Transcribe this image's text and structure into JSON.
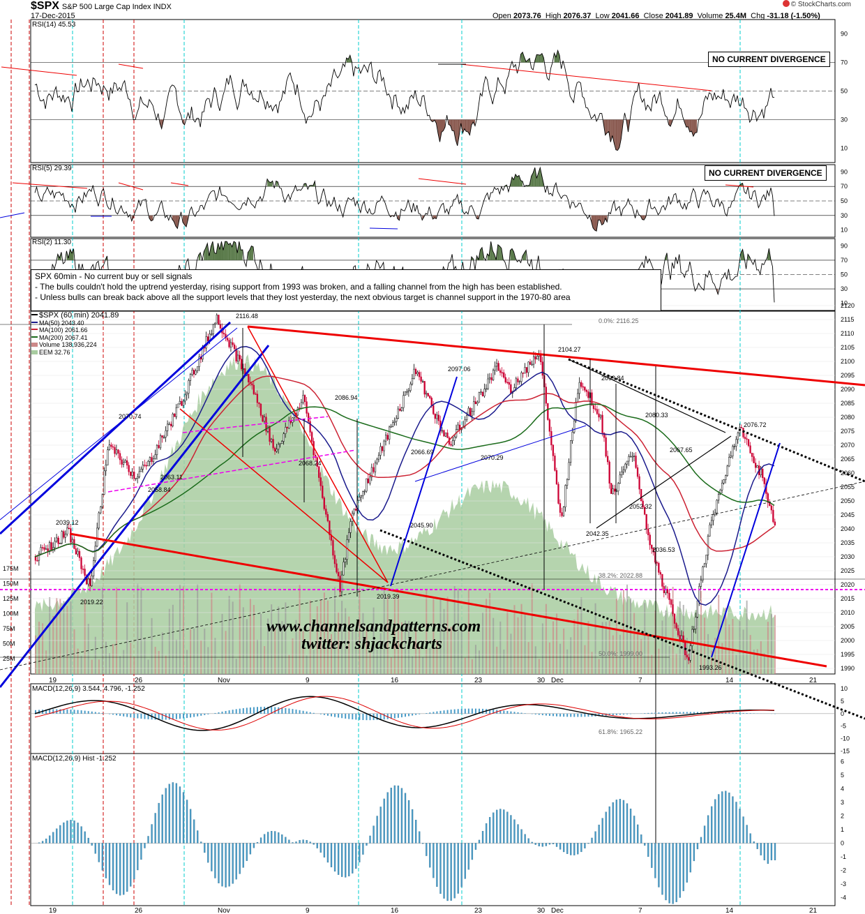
{
  "header": {
    "symbol": "$SPX",
    "name": "S&P 500 Large Cap Index INDX",
    "date": "17-Dec-2015",
    "open_label": "Open",
    "open": "2073.76",
    "high_label": "High",
    "high": "2076.37",
    "low_label": "Low",
    "low": "2041.66",
    "close_label": "Close",
    "close": "2041.89",
    "volume_label": "Volume",
    "volume": "25.4M",
    "chg_label": "Chg",
    "chg": "-31.18 (-1.50%)",
    "credit": "© StockCharts.com"
  },
  "annotations": {
    "rsi14_box": "NO CURRENT DIVERGENCE",
    "rsi5_box": "NO CURRENT DIVERGENCE",
    "note_lines": [
      "SPX 60min - No current buy or sell signals",
      "- The bulls couldn't hold the uptrend yesterday, rising support from 1993 was broken, and a falling channel from the high has been established.",
      "- Unless bulls can break back above all the support levels that they lost yesterday, the next obvious target is channel support in the 1970-80 area"
    ],
    "watermark_line1": "www.channelsandpatterns.com",
    "watermark_line2": "twitter: shjackcharts",
    "fib_0": "0.0%: 2116.25",
    "fib_382": "38.2%: 2022.88",
    "fib_50": "50.0%: 1999.00",
    "fib_618": "61.8%: 1965.22"
  },
  "legend": {
    "price": "$SPX (60 min) 2041.89",
    "ma50": "MA(50) 2043.40",
    "ma100": "MA(100) 2061.66",
    "ma200": "MA(200) 2067.41",
    "volume": "Volume 138,936,224",
    "eem": "EEM 32.76"
  },
  "colors": {
    "price_up": "#000000",
    "price_down": "#cc0033",
    "ma50": "#1a1a8c",
    "ma100": "#cc2233",
    "ma200": "#1a6b1a",
    "eem_fill": "#a8cca0",
    "trend_red": "#ee0000",
    "trend_blue": "#0000dd",
    "support_magenta": "#ee00ee",
    "macd_hist": "#4a9cc8",
    "rsi_green": "#5a7a4a",
    "rsi_brown": "#8a5a50",
    "cyan_marker": "#00cccc",
    "red_marker": "#cc0000"
  },
  "chart_data": [
    {
      "type": "line",
      "panel": "RSI(14)",
      "title": "RSI(14) 45.53",
      "ylim": [
        0,
        100
      ],
      "y_ticks": [
        10,
        30,
        50,
        70,
        90
      ],
      "current_value": 45.53
    },
    {
      "type": "line",
      "panel": "RSI(5)",
      "title": "RSI(5) 29.39",
      "ylim": [
        0,
        100
      ],
      "y_ticks": [
        10,
        30,
        50,
        70,
        90
      ],
      "current_value": 29.39
    },
    {
      "type": "line",
      "panel": "RSI(2)",
      "title": "RSI(2) 11.30",
      "ylim": [
        0,
        100
      ],
      "y_ticks": [
        10,
        30,
        50,
        70,
        90
      ],
      "current_value": 11.3
    },
    {
      "type": "line",
      "panel": "price",
      "title": "$SPX (60 min) 2041.89",
      "ylim": [
        1990,
        2120
      ],
      "y_ticks": [
        1990,
        1995,
        2000,
        2005,
        2010,
        2015,
        2020,
        2025,
        2030,
        2035,
        2040,
        2045,
        2050,
        2055,
        2060,
        2065,
        2070,
        2075,
        2080,
        2085,
        2090,
        2095,
        2100,
        2105,
        2110,
        2115,
        2120
      ],
      "x_tick_labels": [
        "19",
        "26",
        "Nov",
        "9",
        "16",
        "23",
        "30",
        "Dec",
        "7",
        "14",
        "21"
      ],
      "volume_tick_labels": [
        "25M",
        "50M",
        "75M",
        "100M",
        "125M",
        "150M",
        "175M"
      ],
      "price_labels": [
        {
          "x": "Oct 21",
          "y": 2039.12,
          "text": "2039.12"
        },
        {
          "x": "Oct 23",
          "y": 2019.22,
          "text": "2019.22"
        },
        {
          "x": "Oct 26",
          "y": 2070.74,
          "text": "2070.74"
        },
        {
          "x": "Oct 28",
          "y": 2058.84,
          "text": "2058.84"
        },
        {
          "x": "Oct 29",
          "y": 2063.11,
          "text": "2063.11"
        },
        {
          "x": "Nov 3",
          "y": 2116.48,
          "text": "2116.48"
        },
        {
          "x": "Nov 9",
          "y": 2068.24,
          "text": "2068.24"
        },
        {
          "x": "Nov 11",
          "y": 2086.94,
          "text": "2086.94"
        },
        {
          "x": "Nov 16",
          "y": 2019.39,
          "text": "2019.39"
        },
        {
          "x": "Nov 17",
          "y": 2045.9,
          "text": "2045.90"
        },
        {
          "x": "Nov 18",
          "y": 2066.69,
          "text": "2066.69"
        },
        {
          "x": "Nov 20",
          "y": 2097.06,
          "text": "2097.06"
        },
        {
          "x": "Nov 24",
          "y": 2070.29,
          "text": "2070.29"
        },
        {
          "x": "Dec 1",
          "y": 2104.27,
          "text": "2104.27"
        },
        {
          "x": "Dec 4",
          "y": 2042.35,
          "text": "2042.35"
        },
        {
          "x": "Dec 4",
          "y": 2093.84,
          "text": "2093.84"
        },
        {
          "x": "Dec 7",
          "y": 2080.33,
          "text": "2080.33"
        },
        {
          "x": "Dec 8",
          "y": 2052.32,
          "text": "2052.32"
        },
        {
          "x": "Dec 9",
          "y": 2067.65,
          "text": "2067.65"
        },
        {
          "x": "Dec 10",
          "y": 2036.53,
          "text": "2036.53"
        },
        {
          "x": "Dec 14",
          "y": 1993.26,
          "text": "1993.26"
        },
        {
          "x": "Dec 17",
          "y": 2076.72,
          "text": "2076.72"
        }
      ],
      "last_close": 2041.89,
      "grid": true
    },
    {
      "type": "line",
      "panel": "MACD",
      "title": "MACD(12,26,9) 3.544, 4.796, -1.252",
      "series": [
        {
          "name": "MACD(12,26,9)",
          "current": 3.544
        },
        {
          "name": "signal",
          "current": 4.796
        },
        {
          "name": "hist",
          "current": -1.252
        }
      ],
      "ylim": [
        -16,
        12
      ],
      "y_ticks": [
        10,
        5,
        0,
        -5,
        -10,
        -15
      ]
    },
    {
      "type": "bar",
      "panel": "MACD Hist",
      "title": "MACD(12,26,9) Hist -1.252",
      "ylim": [
        -4.6,
        6.6
      ],
      "y_ticks": [
        6,
        5,
        4,
        3,
        2,
        1,
        0,
        -1,
        -2,
        -3,
        -4
      ],
      "current_value": -1.252
    }
  ]
}
